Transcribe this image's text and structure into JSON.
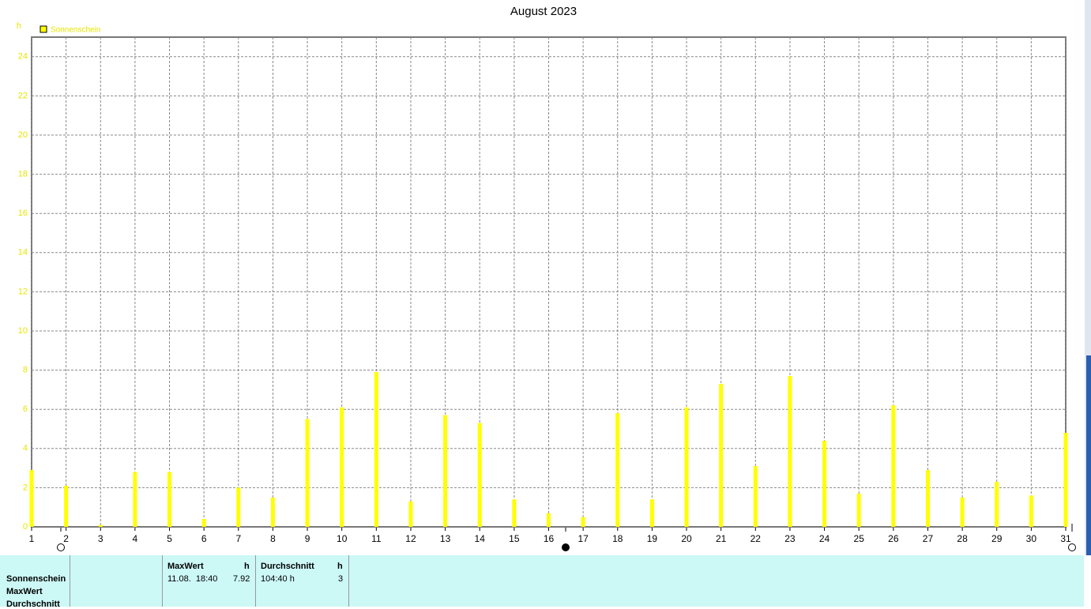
{
  "chart_data": {
    "type": "bar",
    "title": "August 2023",
    "y_unit": "h",
    "x": [
      1,
      2,
      3,
      4,
      5,
      6,
      7,
      8,
      9,
      10,
      11,
      12,
      13,
      14,
      15,
      16,
      17,
      18,
      19,
      20,
      21,
      22,
      23,
      24,
      25,
      26,
      27,
      28,
      29,
      30,
      31
    ],
    "xlim": [
      1,
      31
    ],
    "series": [
      {
        "name": "Sonnenschein",
        "color": "#ffff00",
        "values": [
          2.9,
          2.1,
          0.1,
          2.8,
          2.8,
          0.4,
          2.0,
          1.5,
          5.5,
          6.1,
          7.9,
          1.3,
          5.7,
          5.3,
          1.4,
          0.7,
          0.5,
          5.8,
          1.4,
          6.1,
          7.3,
          3.1,
          7.7,
          4.4,
          1.7,
          6.2,
          2.9,
          1.5,
          2.3,
          1.6,
          4.8
        ]
      }
    ],
    "ylim": [
      0,
      25
    ],
    "yticks": [
      0,
      2,
      4,
      6,
      8,
      10,
      12,
      14,
      16,
      18,
      20,
      22,
      24
    ],
    "grid": true
  },
  "table": {
    "row_labels": [
      "Sonnenschein",
      "MaxWert",
      "Durchschnitt"
    ],
    "columns": [
      {
        "header": "MaxWert",
        "unit": "h",
        "cells": [
          "11.08.  18:40",
          "7.92"
        ]
      },
      {
        "header": "Durchschnitt",
        "unit": "h",
        "cells": [
          "104:40 h",
          "3"
        ]
      }
    ]
  }
}
